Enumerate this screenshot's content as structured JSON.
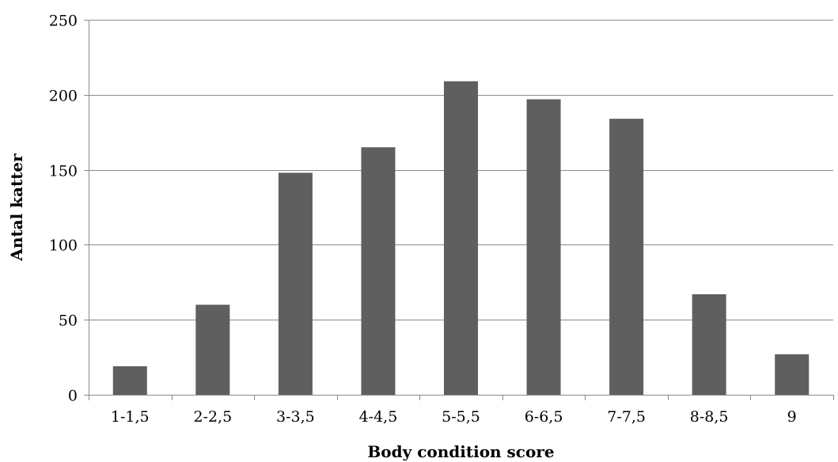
{
  "chart_data": {
    "type": "bar",
    "categories": [
      "1-1,5",
      "2-2,5",
      "3-3,5",
      "4-4,5",
      "5-5,5",
      "6-6,5",
      "7-7,5",
      "8-8,5",
      "9"
    ],
    "values": [
      19,
      60,
      148,
      165,
      209,
      197,
      184,
      67,
      27
    ],
    "xlabel": "Body condition score",
    "ylabel": "Antal katter",
    "ylim": [
      0,
      250
    ],
    "yticks": [
      0,
      50,
      100,
      150,
      200,
      250
    ],
    "grid": true,
    "bar_color": "#5f5f5f"
  }
}
